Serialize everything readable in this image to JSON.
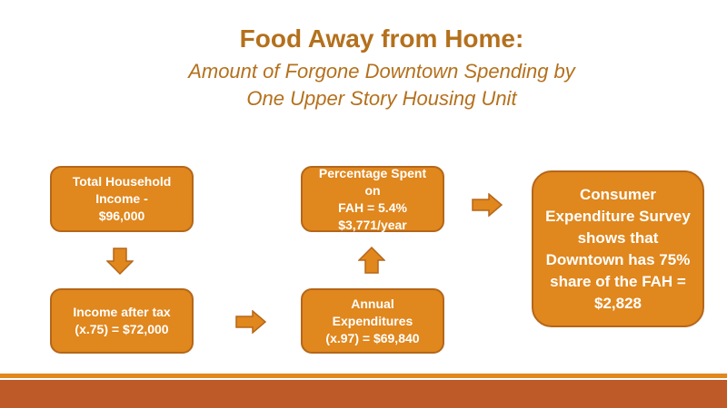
{
  "title": "Food Away from Home:",
  "subtitle": {
    "line1": "Amount of Forgone Downtown Spending by",
    "line2": "One Upper Story Housing Unit"
  },
  "boxes": {
    "household_income": {
      "line1": "Total Household",
      "line2": "Income -",
      "line3": "$96,000"
    },
    "income_after_tax": {
      "line1": "Income after tax",
      "line2": "(x.75) = $72,000"
    },
    "annual_expenditures": {
      "line1": "Annual Expenditures",
      "line2": "(x.97) = $69,840"
    },
    "percentage_spent": {
      "line1": "Percentage Spent on",
      "line2": "FAH = 5.4%",
      "line3": "$3,771/year"
    },
    "consumer_survey": {
      "line1": "Consumer",
      "line2": "Expenditure Survey",
      "line3": "shows that",
      "line4": "Downtown has 75%",
      "line5": "share of the FAH =",
      "line6": "$2,828"
    }
  },
  "colors": {
    "accent": "#E0871D",
    "accent_border": "#B5661A",
    "title": "#B4701C",
    "footer": "#BE5A27"
  },
  "icons": {
    "flow_arrows": "block-arrow"
  }
}
